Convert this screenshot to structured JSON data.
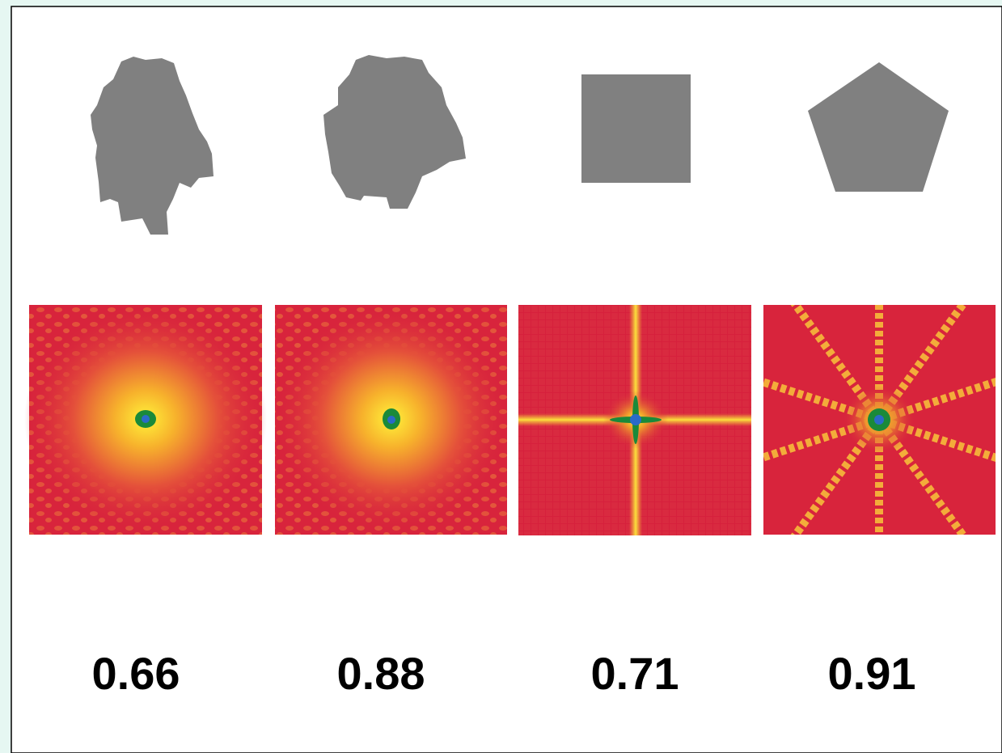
{
  "panels": [
    {
      "score": 0.66
    },
    {
      "score": 0.88
    },
    {
      "score": 0.71
    },
    {
      "score": 0.91
    }
  ]
}
